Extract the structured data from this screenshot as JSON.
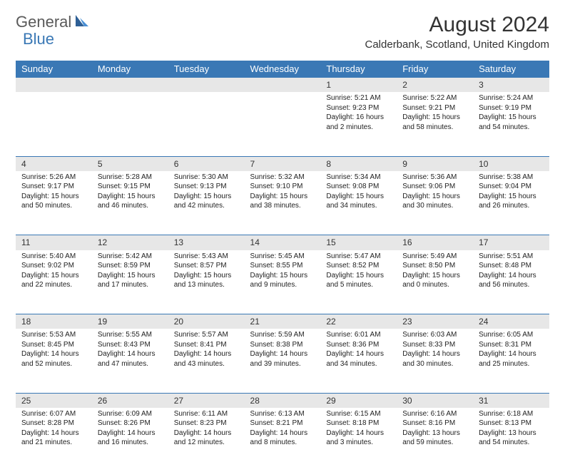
{
  "brand": {
    "part1": "General",
    "part2": "Blue"
  },
  "title": "August 2024",
  "location": "Calderbank, Scotland, United Kingdom",
  "colors": {
    "header_bg": "#3a78b5",
    "header_text": "#ffffff",
    "daynum_bg": "#e7e7e7",
    "border": "#3a78b5",
    "logo_gray": "#5a5a5a",
    "logo_blue": "#3a78b5"
  },
  "weekdays": [
    "Sunday",
    "Monday",
    "Tuesday",
    "Wednesday",
    "Thursday",
    "Friday",
    "Saturday"
  ],
  "weeks": [
    {
      "nums": [
        "",
        "",
        "",
        "",
        "1",
        "2",
        "3"
      ],
      "cells": [
        {
          "sr": "",
          "ss": "",
          "dl": ""
        },
        {
          "sr": "",
          "ss": "",
          "dl": ""
        },
        {
          "sr": "",
          "ss": "",
          "dl": ""
        },
        {
          "sr": "",
          "ss": "",
          "dl": ""
        },
        {
          "sr": "Sunrise: 5:21 AM",
          "ss": "Sunset: 9:23 PM",
          "dl": "Daylight: 16 hours and 2 minutes."
        },
        {
          "sr": "Sunrise: 5:22 AM",
          "ss": "Sunset: 9:21 PM",
          "dl": "Daylight: 15 hours and 58 minutes."
        },
        {
          "sr": "Sunrise: 5:24 AM",
          "ss": "Sunset: 9:19 PM",
          "dl": "Daylight: 15 hours and 54 minutes."
        }
      ]
    },
    {
      "nums": [
        "4",
        "5",
        "6",
        "7",
        "8",
        "9",
        "10"
      ],
      "cells": [
        {
          "sr": "Sunrise: 5:26 AM",
          "ss": "Sunset: 9:17 PM",
          "dl": "Daylight: 15 hours and 50 minutes."
        },
        {
          "sr": "Sunrise: 5:28 AM",
          "ss": "Sunset: 9:15 PM",
          "dl": "Daylight: 15 hours and 46 minutes."
        },
        {
          "sr": "Sunrise: 5:30 AM",
          "ss": "Sunset: 9:13 PM",
          "dl": "Daylight: 15 hours and 42 minutes."
        },
        {
          "sr": "Sunrise: 5:32 AM",
          "ss": "Sunset: 9:10 PM",
          "dl": "Daylight: 15 hours and 38 minutes."
        },
        {
          "sr": "Sunrise: 5:34 AM",
          "ss": "Sunset: 9:08 PM",
          "dl": "Daylight: 15 hours and 34 minutes."
        },
        {
          "sr": "Sunrise: 5:36 AM",
          "ss": "Sunset: 9:06 PM",
          "dl": "Daylight: 15 hours and 30 minutes."
        },
        {
          "sr": "Sunrise: 5:38 AM",
          "ss": "Sunset: 9:04 PM",
          "dl": "Daylight: 15 hours and 26 minutes."
        }
      ]
    },
    {
      "nums": [
        "11",
        "12",
        "13",
        "14",
        "15",
        "16",
        "17"
      ],
      "cells": [
        {
          "sr": "Sunrise: 5:40 AM",
          "ss": "Sunset: 9:02 PM",
          "dl": "Daylight: 15 hours and 22 minutes."
        },
        {
          "sr": "Sunrise: 5:42 AM",
          "ss": "Sunset: 8:59 PM",
          "dl": "Daylight: 15 hours and 17 minutes."
        },
        {
          "sr": "Sunrise: 5:43 AM",
          "ss": "Sunset: 8:57 PM",
          "dl": "Daylight: 15 hours and 13 minutes."
        },
        {
          "sr": "Sunrise: 5:45 AM",
          "ss": "Sunset: 8:55 PM",
          "dl": "Daylight: 15 hours and 9 minutes."
        },
        {
          "sr": "Sunrise: 5:47 AM",
          "ss": "Sunset: 8:52 PM",
          "dl": "Daylight: 15 hours and 5 minutes."
        },
        {
          "sr": "Sunrise: 5:49 AM",
          "ss": "Sunset: 8:50 PM",
          "dl": "Daylight: 15 hours and 0 minutes."
        },
        {
          "sr": "Sunrise: 5:51 AM",
          "ss": "Sunset: 8:48 PM",
          "dl": "Daylight: 14 hours and 56 minutes."
        }
      ]
    },
    {
      "nums": [
        "18",
        "19",
        "20",
        "21",
        "22",
        "23",
        "24"
      ],
      "cells": [
        {
          "sr": "Sunrise: 5:53 AM",
          "ss": "Sunset: 8:45 PM",
          "dl": "Daylight: 14 hours and 52 minutes."
        },
        {
          "sr": "Sunrise: 5:55 AM",
          "ss": "Sunset: 8:43 PM",
          "dl": "Daylight: 14 hours and 47 minutes."
        },
        {
          "sr": "Sunrise: 5:57 AM",
          "ss": "Sunset: 8:41 PM",
          "dl": "Daylight: 14 hours and 43 minutes."
        },
        {
          "sr": "Sunrise: 5:59 AM",
          "ss": "Sunset: 8:38 PM",
          "dl": "Daylight: 14 hours and 39 minutes."
        },
        {
          "sr": "Sunrise: 6:01 AM",
          "ss": "Sunset: 8:36 PM",
          "dl": "Daylight: 14 hours and 34 minutes."
        },
        {
          "sr": "Sunrise: 6:03 AM",
          "ss": "Sunset: 8:33 PM",
          "dl": "Daylight: 14 hours and 30 minutes."
        },
        {
          "sr": "Sunrise: 6:05 AM",
          "ss": "Sunset: 8:31 PM",
          "dl": "Daylight: 14 hours and 25 minutes."
        }
      ]
    },
    {
      "nums": [
        "25",
        "26",
        "27",
        "28",
        "29",
        "30",
        "31"
      ],
      "cells": [
        {
          "sr": "Sunrise: 6:07 AM",
          "ss": "Sunset: 8:28 PM",
          "dl": "Daylight: 14 hours and 21 minutes."
        },
        {
          "sr": "Sunrise: 6:09 AM",
          "ss": "Sunset: 8:26 PM",
          "dl": "Daylight: 14 hours and 16 minutes."
        },
        {
          "sr": "Sunrise: 6:11 AM",
          "ss": "Sunset: 8:23 PM",
          "dl": "Daylight: 14 hours and 12 minutes."
        },
        {
          "sr": "Sunrise: 6:13 AM",
          "ss": "Sunset: 8:21 PM",
          "dl": "Daylight: 14 hours and 8 minutes."
        },
        {
          "sr": "Sunrise: 6:15 AM",
          "ss": "Sunset: 8:18 PM",
          "dl": "Daylight: 14 hours and 3 minutes."
        },
        {
          "sr": "Sunrise: 6:16 AM",
          "ss": "Sunset: 8:16 PM",
          "dl": "Daylight: 13 hours and 59 minutes."
        },
        {
          "sr": "Sunrise: 6:18 AM",
          "ss": "Sunset: 8:13 PM",
          "dl": "Daylight: 13 hours and 54 minutes."
        }
      ]
    }
  ]
}
